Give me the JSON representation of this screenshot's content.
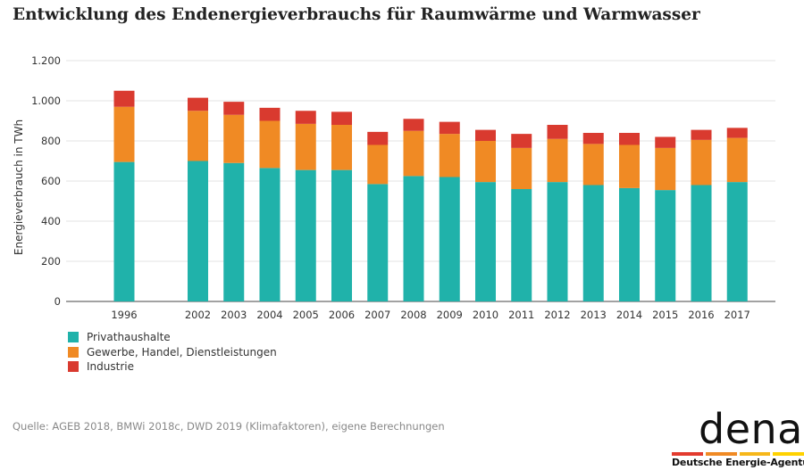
{
  "title": "Entwicklung des Endenergieverbrauchs für Raumwärme und Warmwasser",
  "source": "Quelle: AGEB 2018, BMWi 2018c, DWD 2019 (Klimafaktoren), eigene Berechnungen",
  "logo": {
    "word": "dena",
    "tagline": "Deutsche Energie-Agentur",
    "bar_colors": [
      "#e33b2e",
      "#f08a24",
      "#f6b71a",
      "#ffd200"
    ]
  },
  "chart_data": {
    "type": "bar",
    "stacked": true,
    "categories": [
      "1996",
      "2002",
      "2003",
      "2004",
      "2005",
      "2006",
      "2007",
      "2008",
      "2009",
      "2010",
      "2011",
      "2012",
      "2013",
      "2014",
      "2015",
      "2016",
      "2017"
    ],
    "series": [
      {
        "name": "Privathaushalte",
        "color": "#20b2aa",
        "values": [
          695,
          700,
          690,
          665,
          655,
          655,
          585,
          625,
          620,
          595,
          560,
          595,
          580,
          565,
          555,
          580,
          595
        ]
      },
      {
        "name": "Gewerbe, Handel, Dienstleistungen",
        "color": "#f08a24",
        "values": [
          275,
          250,
          240,
          235,
          230,
          225,
          195,
          225,
          215,
          205,
          205,
          215,
          205,
          215,
          210,
          225,
          220
        ]
      },
      {
        "name": "Industrie",
        "color": "#d93a2f",
        "values": [
          80,
          65,
          65,
          65,
          65,
          65,
          65,
          60,
          60,
          55,
          70,
          70,
          55,
          60,
          55,
          50,
          50
        ]
      }
    ],
    "xlabel": "",
    "ylabel": "Energieverbrauch  in TWh",
    "ylim": [
      0,
      1200
    ],
    "yticks": [
      0,
      200,
      400,
      600,
      800,
      1000,
      1200
    ],
    "ytick_labels": [
      "0",
      "200",
      "400",
      "600",
      "800",
      "1.000",
      "1.200"
    ],
    "grid": true,
    "legend_position": "bottom-left"
  }
}
